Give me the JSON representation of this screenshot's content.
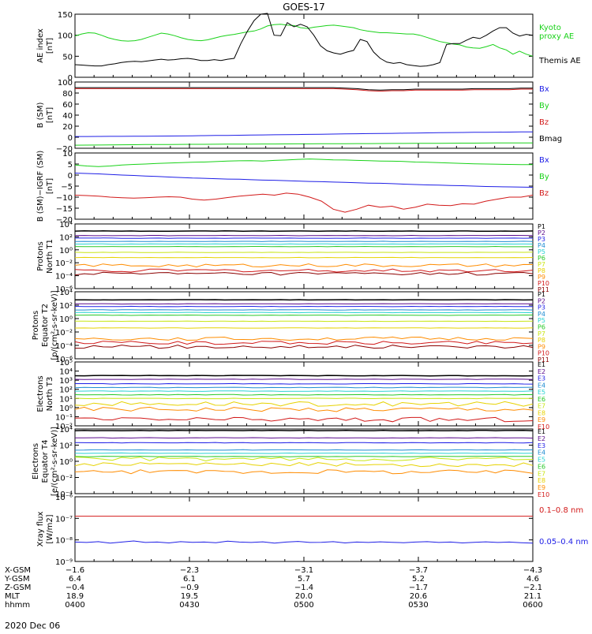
{
  "title": "GOES-17",
  "date_label": "2020 Dec 06",
  "colors": {
    "black": "#000000",
    "green": "#19d219",
    "blue": "#1e1ee6",
    "red": "#d21919",
    "darkred": "#8c0000",
    "p1": "#000000",
    "p2": "#5a0a8c",
    "p3": "#1e1ee6",
    "p4": "#1e8cd2",
    "p5": "#28d2d2",
    "p6": "#28c828",
    "p7": "#c8e614",
    "p8": "#e6d200",
    "p9": "#ff8c00",
    "p10": "#d21919",
    "p11": "#8c0000"
  },
  "chart_data": [
    {
      "type": "line",
      "ylabel": "AE index\n[nT]",
      "ylim": [
        0,
        150
      ],
      "yticks": [
        "0",
        "50",
        "100",
        "150"
      ],
      "series": [
        {
          "name": "Kyoto\nproxy AE",
          "color": "#19d219",
          "values": [
            98,
            103,
            106,
            105,
            100,
            94,
            90,
            87,
            86,
            87,
            90,
            95,
            100,
            105,
            103,
            99,
            94,
            90,
            88,
            87,
            89,
            93,
            97,
            100,
            102,
            105,
            108,
            110,
            115,
            122,
            125,
            126,
            124,
            123,
            118,
            116,
            119,
            121,
            123,
            124,
            122,
            120,
            118,
            113,
            110,
            108,
            106,
            106,
            105,
            104,
            103,
            103,
            100,
            95,
            90,
            85,
            82,
            79,
            77,
            72,
            70,
            69,
            73,
            78,
            70,
            65,
            55,
            62,
            55,
            50
          ]
        },
        {
          "name": "Themis AE",
          "color": "#000000",
          "values": [
            30,
            29,
            28,
            27,
            27,
            30,
            32,
            35,
            37,
            38,
            37,
            39,
            41,
            43,
            41,
            42,
            44,
            45,
            43,
            40,
            40,
            42,
            40,
            43,
            45,
            80,
            110,
            135,
            150,
            152,
            100,
            99,
            130,
            120,
            126,
            120,
            100,
            75,
            63,
            58,
            55,
            60,
            64,
            90,
            85,
            60,
            45,
            36,
            33,
            35,
            30,
            28,
            26,
            27,
            30,
            35,
            78,
            80,
            80,
            88,
            95,
            92,
            100,
            110,
            118,
            118,
            105,
            98,
            102,
            100
          ]
        }
      ]
    },
    {
      "type": "line",
      "ylabel": "B (SM)\n[nT]",
      "ylim": [
        -25,
        105
      ],
      "yticks": [
        "−20",
        "0",
        "20",
        "40",
        "60",
        "80",
        "100"
      ],
      "series": [
        {
          "name": "Bx",
          "color": "#1e1ee6",
          "values": [
            -2,
            -1.9,
            -1.8,
            -1.7,
            -1.6,
            -1.5,
            -1.4,
            -1.2,
            -1,
            -0.8,
            -0.5,
            -0.3,
            0,
            0.3,
            0.6,
            0.9,
            1.2,
            1.5,
            1.8,
            2,
            2.3,
            2.6,
            2.9,
            3.2,
            3.5,
            3.8,
            4,
            4.3,
            4.6,
            4.9,
            5.2,
            5.5,
            5.8,
            6,
            6.2,
            6.4,
            6.6,
            6.8,
            7,
            7.2
          ]
        },
        {
          "name": "By",
          "color": "#19d219",
          "values": [
            -19,
            -18.8,
            -18.6,
            -18.4,
            -18.2,
            -18,
            -17.8,
            -17.6,
            -17.5,
            -17.4,
            -17.3,
            -17.2,
            -17.1,
            -17,
            -16.9,
            -16.8,
            -16.7,
            -16.6,
            -16.5,
            -16.4,
            -16.3,
            -16.2,
            -16.1,
            -16,
            -15.9,
            -15.8,
            -15.7,
            -15.6,
            -15.5,
            -15.4,
            -15.3,
            -15.2,
            -15.1,
            -15,
            -14.9,
            -14.8,
            -14.7,
            -14.6,
            -14.5,
            -14.4
          ]
        },
        {
          "name": "Bz",
          "color": "#d21919",
          "values": [
            92,
            92,
            92,
            92,
            92,
            92,
            92,
            92,
            92,
            92,
            92,
            92,
            92,
            92,
            92,
            92,
            92,
            92,
            92,
            92,
            92,
            92,
            92,
            91,
            90,
            88,
            87,
            88,
            88,
            89,
            89,
            89,
            89,
            89,
            90,
            90,
            90,
            90,
            91,
            91
          ]
        },
        {
          "name": "Bmag",
          "color": "#000000",
          "values": [
            94,
            94,
            94,
            94,
            94,
            94,
            94,
            94,
            94,
            94,
            94,
            94,
            94,
            94,
            94,
            94,
            94,
            94,
            94,
            94,
            94,
            94,
            94,
            93,
            92,
            90,
            89,
            90,
            90,
            91,
            91,
            91,
            91,
            91,
            92,
            92,
            92,
            92,
            93,
            93
          ]
        }
      ]
    },
    {
      "type": "line",
      "ylabel": "B (SM)−IGRF (SM)\n[nT]",
      "ylim": [
        -22,
        11
      ],
      "yticks": [
        "−20",
        "−15",
        "−10",
        "−5",
        "0",
        "5",
        "10"
      ],
      "series": [
        {
          "name": "Bx",
          "color": "#1e1ee6",
          "values": [
            1,
            0.8,
            0.6,
            0.3,
            0,
            -0.2,
            -0.5,
            -0.7,
            -1,
            -1.2,
            -1.5,
            -1.6,
            -1.8,
            -2,
            -2.1,
            -2.3,
            -2.5,
            -2.6,
            -2.8,
            -3,
            -3.2,
            -3.3,
            -3.5,
            -3.6,
            -3.8,
            -4,
            -4.1,
            -4.3,
            -4.5,
            -4.7,
            -4.9,
            -5,
            -5.2,
            -5.3,
            -5.5,
            -5.7,
            -5.8,
            -5.9,
            -6,
            -6.1
          ]
        },
        {
          "name": "By",
          "color": "#19d219",
          "values": [
            5,
            4.5,
            4.2,
            4.5,
            5,
            5.3,
            5.5,
            5.8,
            6,
            6.2,
            6.4,
            6.5,
            6.7,
            7,
            7.1,
            7.2,
            7,
            7.3,
            7.5,
            7.8,
            8,
            7.8,
            7.6,
            7.5,
            7.3,
            7.2,
            7,
            6.9,
            6.8,
            6.5,
            6.4,
            6.2,
            6,
            5.8,
            5.6,
            5.5,
            5.4,
            5.3,
            5.2,
            5.2
          ]
        },
        {
          "name": "Bz",
          "color": "#d21919",
          "values": [
            -10,
            -10.2,
            -10.5,
            -11,
            -11.3,
            -11.5,
            -11.3,
            -11,
            -10.8,
            -11,
            -12,
            -12.5,
            -12,
            -11.2,
            -10.5,
            -10,
            -9.5,
            -10,
            -9,
            -9.5,
            -11,
            -13,
            -17,
            -18.5,
            -17,
            -15,
            -16,
            -15.5,
            -17,
            -16,
            -14.5,
            -15,
            -15.2,
            -14.3,
            -14.5,
            -13,
            -12,
            -11,
            -11,
            -10
          ]
        }
      ]
    },
    {
      "type": "line",
      "ylabel": "Protons\nNorth T1",
      "ylim": [
        -6,
        4
      ],
      "yticks": [
        "10⁻⁶",
        "10⁻⁴",
        "10⁻²",
        "10⁰",
        "10²",
        "10⁴"
      ],
      "levels": [
        2.9,
        2.2,
        1.8,
        1.3,
        0.9,
        0.5,
        -0.4,
        -1.2,
        -2.4,
        -3.2,
        -3.7
      ],
      "names": [
        "P1",
        "P2",
        "P3",
        "P4",
        "P5",
        "P6",
        "P7",
        "P8",
        "P9",
        "P10",
        "P11"
      ]
    },
    {
      "type": "line",
      "ylabel": "Protons\nEquator T2\n[p/(cm²‑s‑sr‑keV)]",
      "ylim": [
        -6,
        4
      ],
      "yticks": [
        "10⁻⁶",
        "10⁻⁴",
        "10⁻²",
        "10⁰",
        "10²",
        "10⁴"
      ],
      "levels": [
        2.8,
        2.2,
        1.8,
        1.3,
        0.9,
        0.5,
        -0.4,
        -1.4,
        -3.0,
        -3.6,
        -4.2
      ],
      "names": [
        "P1",
        "P2",
        "P3",
        "P4",
        "P5",
        "P6",
        "P7",
        "P8",
        "P9",
        "P10",
        "P11"
      ]
    },
    {
      "type": "line",
      "ylabel": "Electrons\nNorth T3",
      "ylim": [
        -2,
        5
      ],
      "yticks": [
        "10⁻²",
        "10⁻¹",
        "10⁰",
        "10¹",
        "10²",
        "10³",
        "10⁴",
        "10⁵"
      ],
      "levels": [
        3.5,
        3.1,
        2.6,
        2.2,
        1.8,
        1.4,
        1.0,
        0.4,
        -0.2,
        -1.3
      ],
      "names": [
        "E1",
        "E2",
        "E3",
        "E4",
        "E5",
        "E6",
        "E7",
        "E8",
        "E9",
        "E10"
      ]
    },
    {
      "type": "line",
      "ylabel": "Electrons\nEquator T4\n[e/(cm²‑s‑sr‑keV)]",
      "ylim": [
        -4,
        4
      ],
      "yticks": [
        "10⁻⁴",
        "10⁻²",
        "10⁰",
        "10²",
        "10⁴"
      ],
      "levels": [
        3.8,
        2.9,
        2.3,
        1.4,
        1.0,
        0.6,
        0.3,
        -0.4,
        -1.3
      ],
      "names": [
        "E1",
        "E2",
        "E3",
        "E4",
        "E5",
        "E6",
        "E7",
        "E8",
        "E9",
        "E10"
      ]
    },
    {
      "type": "line",
      "ylabel": "Xray flux\n[W/m2]",
      "ylim": [
        -9,
        -6
      ],
      "yticks": [
        "10⁻⁹",
        "10⁻⁸",
        "10⁻⁷",
        "10⁻⁶"
      ],
      "series": [
        {
          "name": "0.1–0.8 nm",
          "color": "#d21919",
          "values": [
            -6.9,
            -6.9,
            -6.9,
            -6.9,
            -6.9,
            -6.9,
            -6.9,
            -6.9,
            -6.9,
            -6.9,
            -6.9,
            -6.9
          ]
        },
        {
          "name": "0.05–0.4 nm",
          "color": "#1e1ee6",
          "values": [
            -8.1,
            -8.12,
            -8.08,
            -8.15,
            -8.1,
            -8.05,
            -8.12,
            -8.1,
            -8.14,
            -8.08,
            -8.11,
            -8.1,
            -8.13,
            -8.06,
            -8.1,
            -8.12,
            -8.09,
            -8.15,
            -8.1,
            -8.07,
            -8.12,
            -8.11,
            -8.08,
            -8.14,
            -8.1,
            -8.12,
            -8.09,
            -8.11,
            -8.13,
            -8.1,
            -8.08,
            -8.12,
            -8.1,
            -8.14,
            -8.11,
            -8.09,
            -8.12,
            -8.1,
            -8.13,
            -8.15
          ]
        }
      ]
    }
  ],
  "x_axis": {
    "row_labels": [
      "X-GSM",
      "Y-GSM",
      "Z-GSM",
      "MLT",
      "hhmm"
    ],
    "ticks": [
      {
        "x_gsm": "−1.6",
        "y_gsm": "6.4",
        "z_gsm": "−0.4",
        "mlt": "18.9",
        "hhmm": "0400"
      },
      {
        "x_gsm": "−2.3",
        "y_gsm": "6.1",
        "z_gsm": "−0.9",
        "mlt": "19.5",
        "hhmm": "0430"
      },
      {
        "x_gsm": "−3.1",
        "y_gsm": "5.7",
        "z_gsm": "−1.4",
        "mlt": "20.0",
        "hhmm": "0500"
      },
      {
        "x_gsm": "−3.7",
        "y_gsm": "5.2",
        "z_gsm": "−1.7",
        "mlt": "20.6",
        "hhmm": "0530"
      },
      {
        "x_gsm": "−4.3",
        "y_gsm": "4.6",
        "z_gsm": "−2.1",
        "mlt": "21.1",
        "hhmm": "0600"
      }
    ]
  }
}
